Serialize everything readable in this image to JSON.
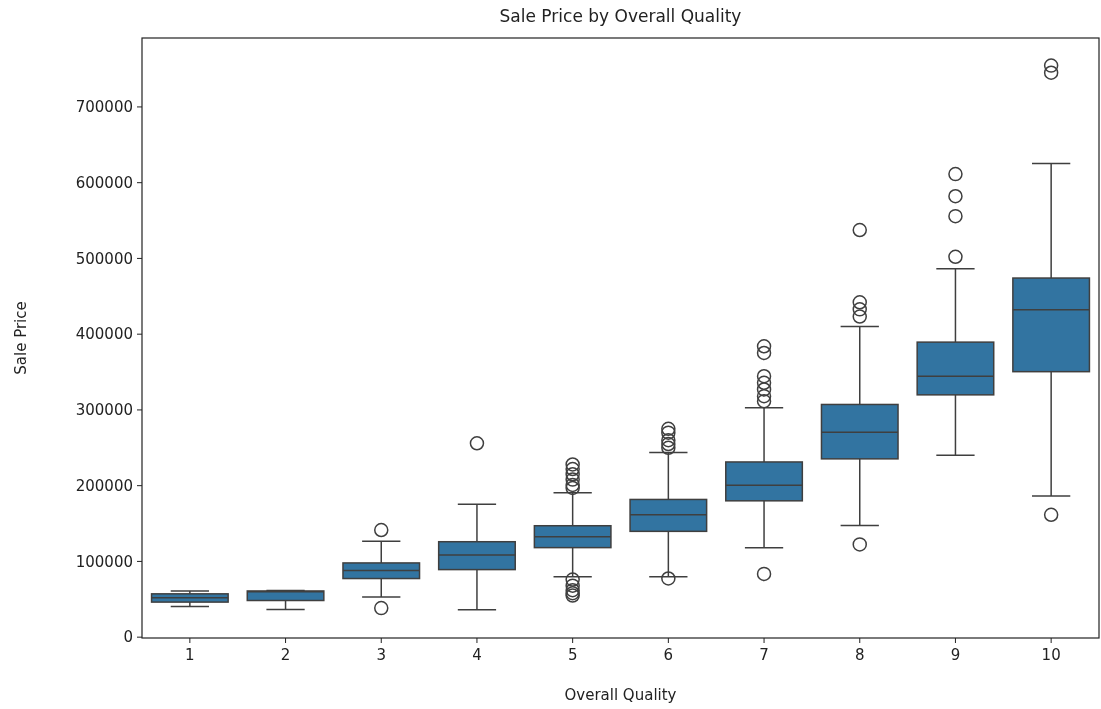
{
  "chart_data": {
    "type": "box",
    "title": "Sale Price by Overall Quality",
    "xlabel": "Overall Quality",
    "ylabel": "Sale Price",
    "categories": [
      "1",
      "2",
      "3",
      "4",
      "5",
      "6",
      "7",
      "8",
      "9",
      "10"
    ],
    "color": "#3274a1",
    "ylim": [
      -1100,
      791000
    ],
    "yticks": [
      0,
      100000,
      200000,
      300000,
      400000,
      500000,
      600000,
      700000
    ],
    "grid": false,
    "boxes": [
      {
        "low": 40500,
        "q1": 46300,
        "median": 52000,
        "q3": 57200,
        "high": 61000
      },
      {
        "low": 36600,
        "q1": 48400,
        "median": 60000,
        "q3": 61000,
        "high": 61600
      },
      {
        "low": 52900,
        "q1": 77400,
        "median": 87900,
        "q3": 98000,
        "high": 126600,
        "outliers": [
          141400,
          38400
        ]
      },
      {
        "low": 36200,
        "q1": 89200,
        "median": 108600,
        "q3": 126000,
        "high": 175600,
        "outliers": [
          256000
        ]
      },
      {
        "low": 79600,
        "q1": 118200,
        "median": 132600,
        "q3": 147100,
        "high": 190500,
        "outliers": [
          228000,
          222000,
          215000,
          208000,
          201000,
          197000,
          76000,
          68000,
          62000,
          58000,
          55000
        ]
      },
      {
        "low": 79600,
        "q1": 139700,
        "median": 161600,
        "q3": 181800,
        "high": 243700,
        "outliers": [
          275000,
          270000,
          260000,
          255000,
          250000,
          77500
        ]
      },
      {
        "low": 118200,
        "q1": 180000,
        "median": 200700,
        "q3": 231300,
        "high": 302900,
        "outliers": [
          384000,
          375200,
          344500,
          335800,
          327000,
          318200,
          311600,
          83500
        ]
      },
      {
        "low": 147500,
        "q1": 235400,
        "median": 270500,
        "q3": 307200,
        "high": 410100,
        "outliers": [
          537500,
          442100,
          432800,
          423300,
          122500
        ]
      },
      {
        "low": 240100,
        "q1": 319900,
        "median": 344300,
        "q3": 389500,
        "high": 486300,
        "outliers": [
          611300,
          582100,
          555800,
          502200
        ]
      },
      {
        "low": 186400,
        "q1": 350500,
        "median": 432200,
        "q3": 474100,
        "high": 625400,
        "outliers": [
          754600,
          745200,
          161600
        ]
      }
    ]
  }
}
